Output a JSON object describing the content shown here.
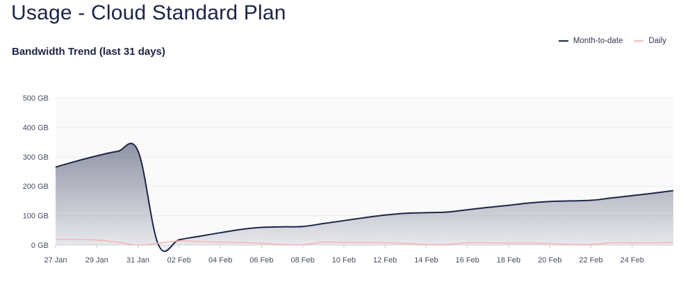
{
  "page": {
    "title": "Usage - Cloud Standard Plan"
  },
  "chart_data": {
    "type": "area",
    "title": "Bandwidth Trend (last 31 days)",
    "xlabel": "",
    "ylabel": "",
    "y_unit": "GB",
    "ylim": [
      0,
      500
    ],
    "grid": true,
    "legend_position": "top-right",
    "x_ticks": [
      "27 Jan",
      "29 Jan",
      "31 Jan",
      "02 Feb",
      "04 Feb",
      "06 Feb",
      "08 Feb",
      "10 Feb",
      "12 Feb",
      "14 Feb",
      "16 Feb",
      "18 Feb",
      "20 Feb",
      "22 Feb",
      "24 Feb"
    ],
    "y_ticks": [
      "0 GB",
      "100 GB",
      "200 GB",
      "300 GB",
      "400 GB",
      "500 GB"
    ],
    "x": [
      "27 Jan",
      "28 Jan",
      "29 Jan",
      "30 Jan",
      "31 Jan",
      "01 Feb",
      "02 Feb",
      "03 Feb",
      "04 Feb",
      "05 Feb",
      "06 Feb",
      "07 Feb",
      "08 Feb",
      "09 Feb",
      "10 Feb",
      "11 Feb",
      "12 Feb",
      "13 Feb",
      "14 Feb",
      "15 Feb",
      "16 Feb",
      "17 Feb",
      "18 Feb",
      "19 Feb",
      "20 Feb",
      "21 Feb",
      "22 Feb",
      "23 Feb",
      "24 Feb",
      "25 Feb",
      "26 Feb"
    ],
    "series": [
      {
        "name": "Month-to-date",
        "color": "#1c2447",
        "values": [
          265,
          285,
          303,
          318,
          320,
          0,
          18,
          30,
          42,
          53,
          60,
          62,
          63,
          73,
          83,
          93,
          102,
          108,
          110,
          112,
          120,
          128,
          135,
          143,
          148,
          150,
          152,
          160,
          168,
          176,
          185
        ]
      },
      {
        "name": "Daily",
        "color": "#f4b8b8",
        "values": [
          20,
          19,
          17,
          10,
          0,
          6,
          14,
          12,
          10,
          9,
          6,
          2,
          1,
          10,
          9,
          9,
          8,
          6,
          2,
          2,
          8,
          8,
          7,
          7,
          5,
          2,
          2,
          8,
          8,
          8,
          9
        ]
      }
    ]
  }
}
